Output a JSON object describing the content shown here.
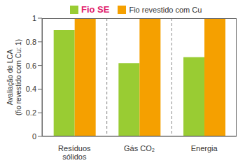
{
  "chart_data": {
    "type": "bar",
    "y_label": "Avaliação de LCA (fio revestido com Cu: 1)",
    "categories": [
      "Resíduos sólidos",
      "Gás CO₂",
      "Energia"
    ],
    "series": [
      {
        "name": "Fio SE",
        "color": "#99cc33",
        "values": [
          0.9,
          0.62,
          0.67
        ]
      },
      {
        "name": "Fio revestido com Cu",
        "color": "#f5a000",
        "values": [
          1,
          1,
          1
        ]
      }
    ],
    "ylim": [
      0,
      1
    ],
    "yticks": [
      0,
      0.2,
      0.4,
      0.6,
      0.8,
      1
    ],
    "legend": "top",
    "grid": true
  }
}
